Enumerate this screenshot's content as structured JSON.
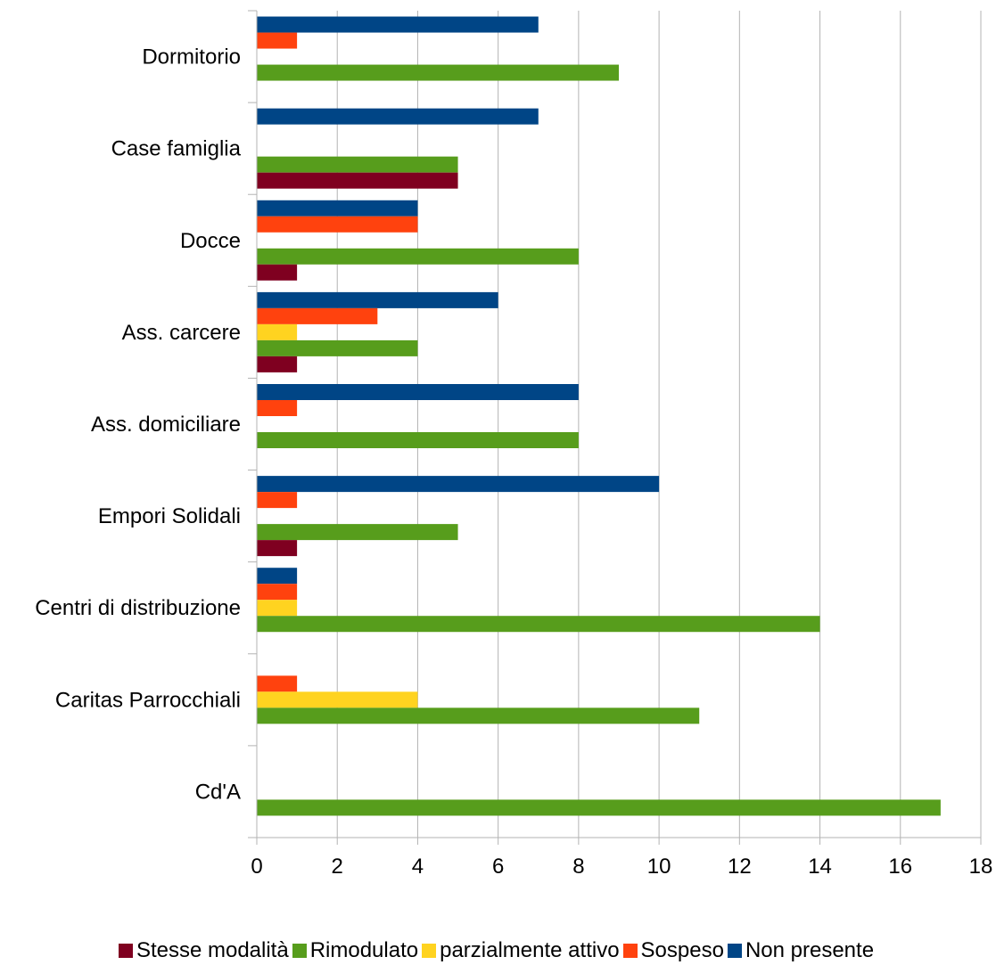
{
  "chart_data": {
    "type": "bar",
    "orientation": "horizontal",
    "categories": [
      "Dormitorio",
      "Case famiglia",
      "Docce",
      "Ass. carcere",
      "Ass. domiciliare",
      "Empori Solidali",
      "Centri di distribuzione",
      "Caritas Parrocchiali",
      "Cd'A"
    ],
    "series": [
      {
        "name": "Stesse modalità",
        "color": "#7f0020",
        "values": [
          0,
          5,
          1,
          1,
          0,
          1,
          0,
          0,
          0
        ]
      },
      {
        "name": "Rimodulato",
        "color": "#579d1c",
        "values": [
          9,
          5,
          8,
          4,
          8,
          5,
          14,
          11,
          17
        ]
      },
      {
        "name": "parzialmente attivo",
        "color": "#ffd320",
        "values": [
          0,
          0,
          0,
          1,
          0,
          0,
          1,
          4,
          0
        ]
      },
      {
        "name": "Sospeso",
        "color": "#ff420e",
        "values": [
          1,
          0,
          4,
          3,
          1,
          1,
          1,
          1,
          0
        ]
      },
      {
        "name": "Non presente",
        "color": "#004586",
        "values": [
          7,
          7,
          4,
          6,
          8,
          10,
          1,
          0,
          0
        ]
      }
    ],
    "xlim": [
      0,
      18
    ],
    "xticks": [
      "0",
      "2",
      "4",
      "6",
      "8",
      "10",
      "12",
      "14",
      "16",
      "18"
    ],
    "grid": "vertical",
    "legend": "bottom"
  }
}
